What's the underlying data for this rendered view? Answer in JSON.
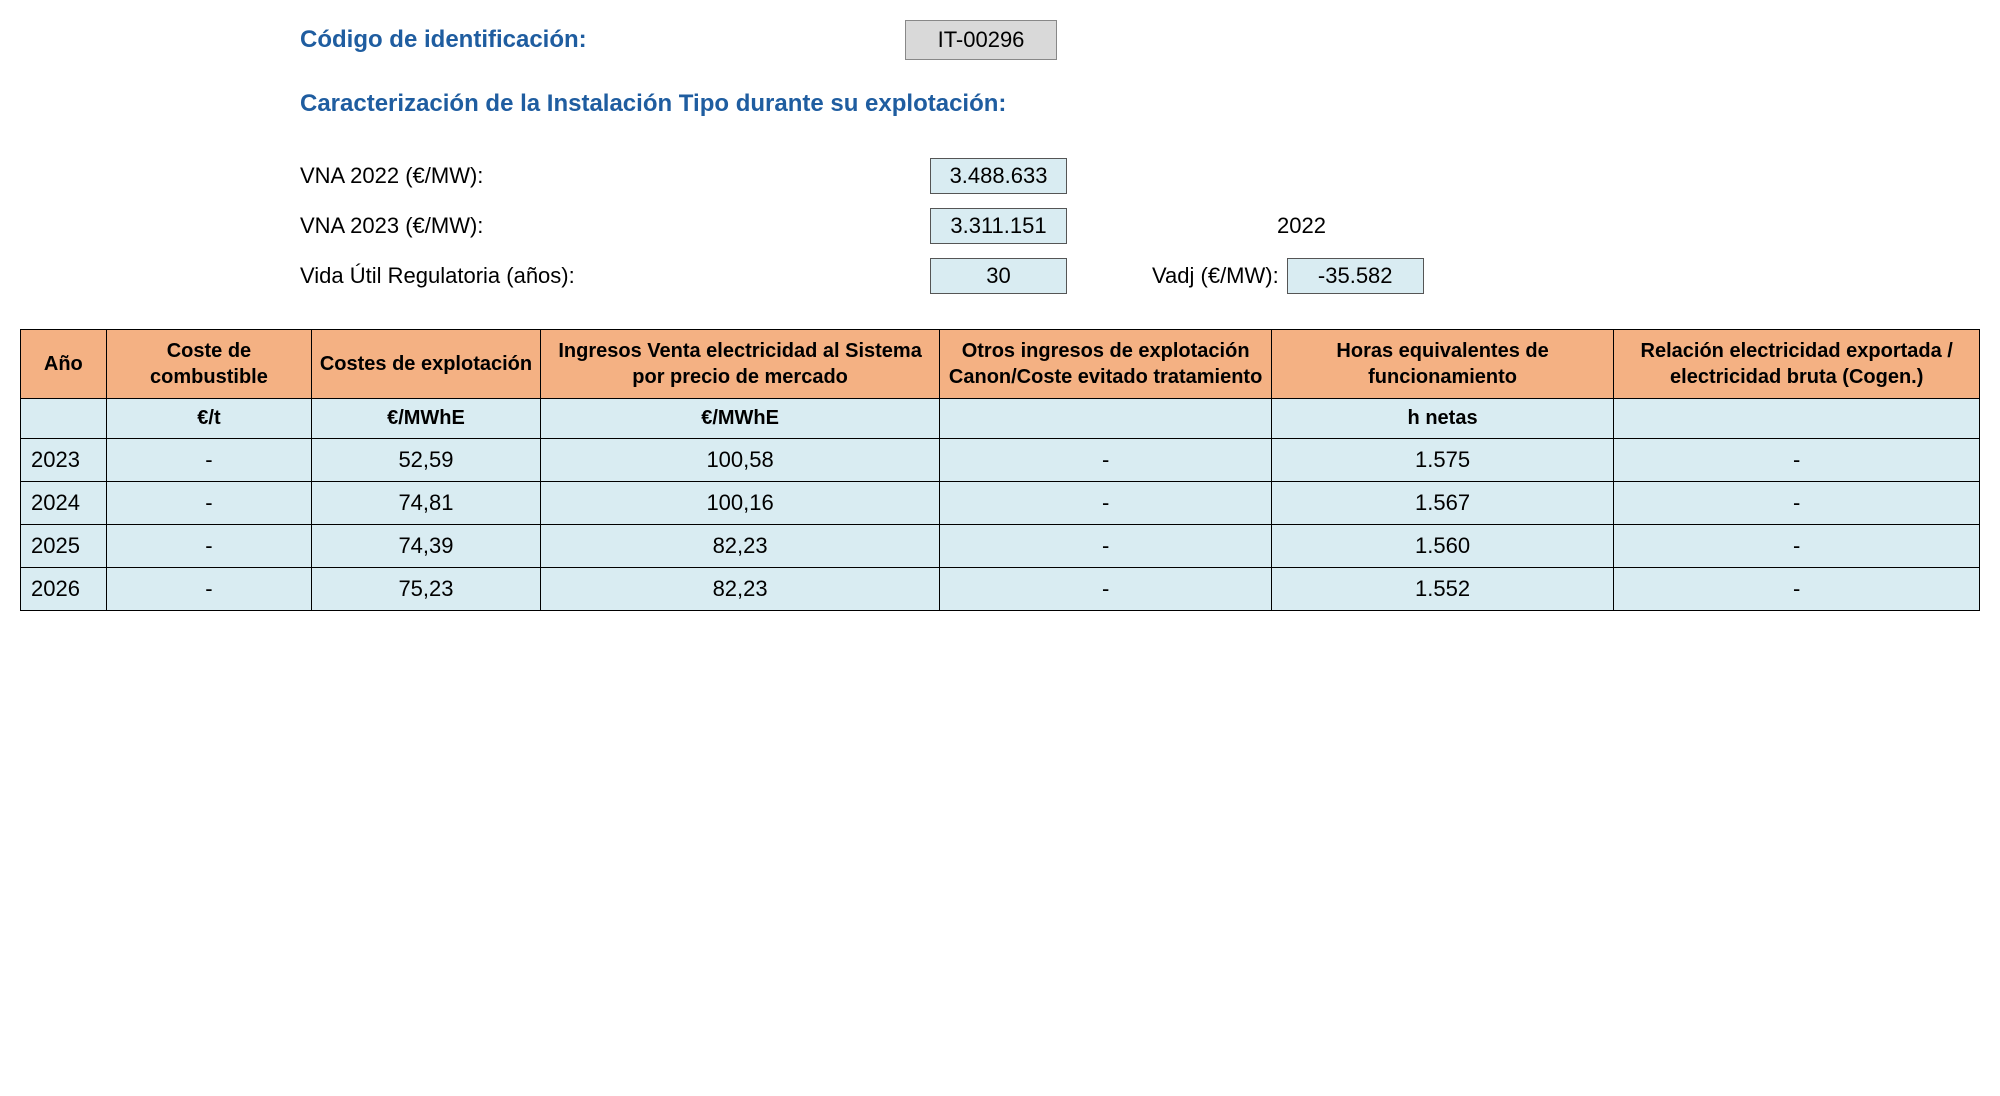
{
  "header": {
    "id_label": "Código de identificación:",
    "id_value": "IT-00296",
    "subheading": "Caracterización de la Instalación Tipo durante su explotación:"
  },
  "params": {
    "vna2022_label": "VNA 2022 (€/MW):",
    "vna2022_value": "3.488.633",
    "vna2023_label": "VNA 2023 (€/MW):",
    "vna2023_value": "3.311.151",
    "vna_extra_year": "2022",
    "vida_util_label": "Vida Útil Regulatoria (años):",
    "vida_util_value": "30",
    "vadj_label": "Vadj (€/MW):",
    "vadj_value": "-35.582"
  },
  "table": {
    "columns": [
      "Año",
      "Coste de combustible",
      "Costes de explotación",
      "Ingresos Venta electricidad al Sistema por precio de mercado",
      "Otros ingresos de explotación Canon/Coste evitado tratamiento",
      "Horas equivalentes de funcionamiento",
      "Relación electricidad exportada / electricidad bruta\n(Cogen.)"
    ],
    "units": [
      "",
      "€/t",
      "€/MWhE",
      "€/MWhE",
      "",
      "h netas",
      ""
    ],
    "rows": [
      [
        "2023",
        "-",
        "52,59",
        "100,58",
        "-",
        "1.575",
        "-"
      ],
      [
        "2024",
        "-",
        "74,81",
        "100,16",
        "-",
        "1.567",
        "-"
      ],
      [
        "2025",
        "-",
        "74,39",
        "82,23",
        "-",
        "1.560",
        "-"
      ],
      [
        "2026",
        "-",
        "75,23",
        "82,23",
        "-",
        "1.552",
        "-"
      ]
    ],
    "header_bg": "#f4b183",
    "cell_bg": "#d9ecf2",
    "border_color": "#000000"
  }
}
